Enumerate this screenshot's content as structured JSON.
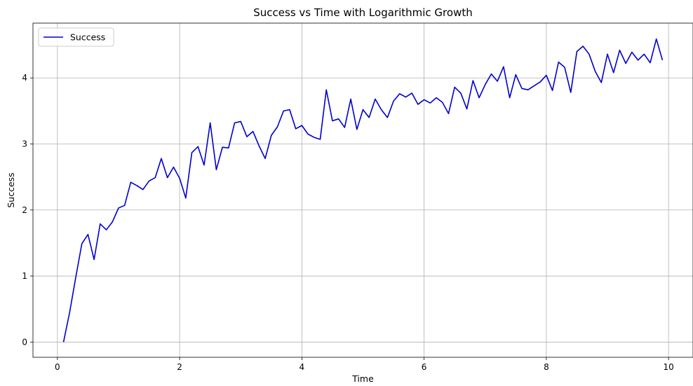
{
  "chart_data": {
    "type": "line",
    "title": "Success vs Time with Logarithmic Growth",
    "xlabel": "Time",
    "ylabel": "Success",
    "xlim": [
      -0.4,
      10.4
    ],
    "ylim": [
      -0.23,
      4.83
    ],
    "xticks": [
      0,
      2,
      4,
      6,
      8,
      10
    ],
    "xtick_labels": [
      "0",
      "2",
      "4",
      "6",
      "8",
      "10"
    ],
    "yticks": [
      0,
      1,
      2,
      3,
      4
    ],
    "ytick_labels": [
      "0",
      "1",
      "2",
      "3",
      "4"
    ],
    "grid": true,
    "legend_position": "top-left",
    "series": [
      {
        "name": "Success",
        "color": "#0000cd",
        "x": [
          0.1,
          0.2,
          0.3,
          0.4,
          0.5,
          0.6,
          0.7,
          0.8,
          0.9,
          1.0,
          1.1,
          1.2,
          1.3,
          1.4,
          1.5,
          1.6,
          1.7,
          1.8,
          1.9,
          2.0,
          2.1,
          2.2,
          2.3,
          2.4,
          2.5,
          2.6,
          2.7,
          2.8,
          2.9,
          3.0,
          3.1,
          3.2,
          3.3,
          3.4,
          3.5,
          3.6,
          3.7,
          3.8,
          3.9,
          4.0,
          4.1,
          4.2,
          4.3,
          4.4,
          4.5,
          4.6,
          4.7,
          4.8,
          4.9,
          5.0,
          5.1,
          5.2,
          5.3,
          5.4,
          5.5,
          5.6,
          5.7,
          5.8,
          5.9,
          6.0,
          6.1,
          6.2,
          6.3,
          6.4,
          6.5,
          6.6,
          6.7,
          6.8,
          6.9,
          7.0,
          7.1,
          7.2,
          7.3,
          7.4,
          7.5,
          7.6,
          7.7,
          7.8,
          7.9,
          8.0,
          8.1,
          8.2,
          8.3,
          8.4,
          8.5,
          8.6,
          8.7,
          8.8,
          8.9,
          9.0,
          9.1,
          9.2,
          9.3,
          9.4,
          9.5,
          9.6,
          9.7,
          9.8,
          9.9
        ],
        "values": [
          0.0,
          0.45,
          0.98,
          1.49,
          1.63,
          1.25,
          1.79,
          1.7,
          1.82,
          2.03,
          2.07,
          2.42,
          2.37,
          2.31,
          2.44,
          2.49,
          2.78,
          2.49,
          2.65,
          2.48,
          2.18,
          2.87,
          2.96,
          2.68,
          3.32,
          2.61,
          2.95,
          2.94,
          3.32,
          3.34,
          3.11,
          3.19,
          2.97,
          2.78,
          3.13,
          3.26,
          3.5,
          3.52,
          3.23,
          3.28,
          3.15,
          3.1,
          3.07,
          3.82,
          3.35,
          3.38,
          3.25,
          3.68,
          3.22,
          3.52,
          3.4,
          3.68,
          3.52,
          3.4,
          3.65,
          3.76,
          3.71,
          3.77,
          3.6,
          3.67,
          3.62,
          3.7,
          3.63,
          3.46,
          3.86,
          3.77,
          3.53,
          3.96,
          3.7,
          3.9,
          4.06,
          3.95,
          4.17,
          3.7,
          4.05,
          3.84,
          3.82,
          3.88,
          3.94,
          4.04,
          3.81,
          4.24,
          4.16,
          3.78,
          4.4,
          4.48,
          4.36,
          4.1,
          3.93,
          4.36,
          4.08,
          4.42,
          4.22,
          4.39,
          4.27,
          4.36,
          4.23,
          4.59,
          4.27
        ]
      }
    ]
  }
}
